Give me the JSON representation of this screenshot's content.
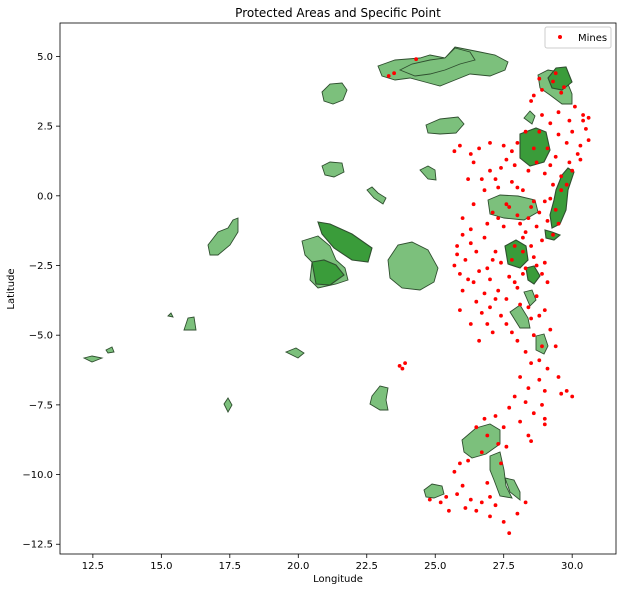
{
  "chart_data": {
    "type": "scatter",
    "title": "Protected Areas and Specific Point",
    "xlabel": "Longitude",
    "ylabel": "Latitude",
    "xlim": [
      11.3,
      31.6
    ],
    "ylim": [
      -12.85,
      6.2
    ],
    "xticks": [
      12.5,
      15.0,
      17.5,
      20.0,
      22.5,
      25.0,
      27.5,
      30.0
    ],
    "xtick_labels": [
      "12.5",
      "15.0",
      "17.5",
      "20.0",
      "22.5",
      "25.0",
      "27.5",
      "30.0"
    ],
    "yticks": [
      5.0,
      2.5,
      0.0,
      -2.5,
      -5.0,
      -7.5,
      -10.0,
      -12.5
    ],
    "ytick_labels": [
      "5.0",
      "2.5",
      "0.0",
      "−2.5",
      "−5.0",
      "−7.5",
      "−10.0",
      "−12.5"
    ],
    "grid": false,
    "legend_position": "top-right",
    "series": [
      {
        "name": "Mines",
        "color": "#ff0000",
        "marker": "point",
        "points": [
          [
            23.3,
            4.3
          ],
          [
            23.5,
            4.4
          ],
          [
            23.8,
            -6.2
          ],
          [
            23.9,
            -6.0
          ],
          [
            23.7,
            -6.1
          ],
          [
            24.3,
            4.9
          ],
          [
            26.3,
            1.5
          ],
          [
            26.4,
            1.2
          ],
          [
            27.0,
            1.9
          ],
          [
            27.5,
            1.8
          ],
          [
            27.8,
            1.6
          ],
          [
            27.4,
            1.0
          ],
          [
            27.0,
            0.9
          ],
          [
            26.2,
            0.6
          ],
          [
            26.8,
            0.2
          ],
          [
            27.3,
            0.3
          ],
          [
            27.8,
            0.5
          ],
          [
            27.1,
            -0.6
          ],
          [
            27.6,
            -0.3
          ],
          [
            28.0,
            -0.7
          ],
          [
            28.4,
            0.9
          ],
          [
            28.7,
            1.2
          ],
          [
            29.0,
            0.8
          ],
          [
            29.3,
            0.4
          ],
          [
            29.6,
            0.2
          ],
          [
            29.1,
            1.7
          ],
          [
            29.4,
            1.4
          ],
          [
            28.8,
            2.3
          ],
          [
            29.2,
            2.6
          ],
          [
            28.5,
            3.4
          ],
          [
            28.9,
            3.8
          ],
          [
            29.3,
            4.1
          ],
          [
            29.6,
            3.7
          ],
          [
            30.1,
            3.2
          ],
          [
            30.4,
            2.7
          ],
          [
            30.0,
            2.3
          ],
          [
            29.8,
            1.9
          ],
          [
            30.5,
            2.4
          ],
          [
            30.2,
            1.5
          ],
          [
            29.9,
            1.2
          ],
          [
            30.6,
            2.0
          ],
          [
            28.3,
            -1.3
          ],
          [
            28.7,
            -1.1
          ],
          [
            29.1,
            -0.9
          ],
          [
            28.5,
            -0.4
          ],
          [
            29.0,
            -0.2
          ],
          [
            28.9,
            -1.6
          ],
          [
            26.0,
            -0.8
          ],
          [
            26.3,
            -1.2
          ],
          [
            25.8,
            -1.8
          ],
          [
            26.1,
            -2.3
          ],
          [
            25.9,
            -2.8
          ],
          [
            26.4,
            -3.1
          ],
          [
            26.8,
            -1.5
          ],
          [
            27.2,
            -2.0
          ],
          [
            26.9,
            -2.6
          ],
          [
            27.4,
            -2.4
          ],
          [
            27.7,
            -2.9
          ],
          [
            27.3,
            -3.4
          ],
          [
            26.5,
            -3.8
          ],
          [
            26.7,
            -4.2
          ],
          [
            27.0,
            -4.0
          ],
          [
            27.6,
            -3.7
          ],
          [
            28.0,
            -3.3
          ],
          [
            28.3,
            -2.6
          ],
          [
            28.6,
            -2.2
          ],
          [
            28.9,
            -2.8
          ],
          [
            29.1,
            -3.1
          ],
          [
            28.7,
            -3.6
          ],
          [
            28.4,
            -4.0
          ],
          [
            28.8,
            -4.3
          ],
          [
            29.2,
            -4.8
          ],
          [
            28.6,
            -5.0
          ],
          [
            28.3,
            -5.6
          ],
          [
            28.8,
            -5.9
          ],
          [
            29.1,
            -6.2
          ],
          [
            29.5,
            -6.5
          ],
          [
            29.8,
            -7.0
          ],
          [
            30.0,
            -7.2
          ],
          [
            29.4,
            -5.4
          ],
          [
            27.6,
            -4.6
          ],
          [
            27.1,
            -4.9
          ],
          [
            26.6,
            -5.2
          ],
          [
            26.3,
            -4.6
          ],
          [
            25.9,
            -4.1
          ],
          [
            26.0,
            -3.4
          ],
          [
            25.7,
            -2.5
          ],
          [
            27.9,
            -1.8
          ],
          [
            28.2,
            -2.0
          ],
          [
            27.5,
            -1.1
          ],
          [
            28.1,
            -1.0
          ],
          [
            28.6,
            -0.2
          ],
          [
            29.2,
            -0.1
          ],
          [
            29.4,
            -0.5
          ],
          [
            29.6,
            0.7
          ],
          [
            27.9,
            -7.2
          ],
          [
            28.3,
            -7.4
          ],
          [
            28.6,
            -7.8
          ],
          [
            28.9,
            -7.5
          ],
          [
            29.0,
            -8.0
          ],
          [
            28.1,
            -8.1
          ],
          [
            27.7,
            -7.6
          ],
          [
            27.5,
            -8.3
          ],
          [
            27.2,
            -7.9
          ],
          [
            26.8,
            -8.0
          ],
          [
            26.5,
            -8.3
          ],
          [
            26.9,
            -8.6
          ],
          [
            27.3,
            -8.9
          ],
          [
            27.6,
            -9.0
          ],
          [
            26.7,
            -9.2
          ],
          [
            26.2,
            -9.5
          ],
          [
            25.9,
            -9.6
          ],
          [
            25.7,
            -9.9
          ],
          [
            26.0,
            -10.4
          ],
          [
            25.4,
            -10.8
          ],
          [
            25.8,
            -10.7
          ],
          [
            26.3,
            -10.9
          ],
          [
            26.7,
            -11.0
          ],
          [
            27.0,
            -10.8
          ],
          [
            26.5,
            -11.3
          ],
          [
            27.2,
            -11.1
          ],
          [
            27.0,
            -11.5
          ],
          [
            27.5,
            -11.7
          ],
          [
            27.7,
            -12.1
          ],
          [
            28.0,
            -11.4
          ],
          [
            28.3,
            -11.0
          ],
          [
            25.2,
            -11.0
          ],
          [
            25.5,
            -11.3
          ],
          [
            24.8,
            -10.9
          ],
          [
            26.1,
            -11.2
          ],
          [
            26.9,
            -10.3
          ],
          [
            27.4,
            -9.6
          ],
          [
            28.4,
            -8.6
          ],
          [
            29.0,
            -8.2
          ],
          [
            28.5,
            -8.8
          ],
          [
            29.6,
            -7.1
          ],
          [
            28.5,
            -6.0
          ],
          [
            28.1,
            -6.5
          ],
          [
            28.4,
            -6.9
          ],
          [
            28.8,
            -6.6
          ],
          [
            29.0,
            -7.0
          ],
          [
            28.0,
            -5.2
          ],
          [
            27.8,
            -4.9
          ],
          [
            25.8,
            -2.1
          ],
          [
            26.0,
            -1.4
          ],
          [
            26.5,
            -2.0
          ],
          [
            26.6,
            -2.7
          ],
          [
            26.2,
            -3.0
          ],
          [
            27.0,
            -3.0
          ],
          [
            27.2,
            -3.7
          ],
          [
            27.9,
            -3.1
          ],
          [
            28.1,
            -3.9
          ],
          [
            28.5,
            -4.4
          ],
          [
            29.0,
            -4.1
          ],
          [
            28.9,
            -5.4
          ],
          [
            28.2,
            -1.5
          ],
          [
            28.8,
            -0.6
          ],
          [
            29.3,
            -1.4
          ],
          [
            29.5,
            -1.0
          ],
          [
            28.4,
            -0.8
          ],
          [
            27.7,
            -0.4
          ],
          [
            29.8,
            0.4
          ],
          [
            30.0,
            0.9
          ],
          [
            30.3,
            1.8
          ],
          [
            30.6,
            2.8
          ],
          [
            30.4,
            2.9
          ],
          [
            29.9,
            2.7
          ],
          [
            29.7,
            3.9
          ],
          [
            29.4,
            4.4
          ],
          [
            28.8,
            4.2
          ],
          [
            28.6,
            3.6
          ],
          [
            28.9,
            2.9
          ],
          [
            29.5,
            3.0
          ],
          [
            28.3,
            2.3
          ],
          [
            28.0,
            1.9
          ],
          [
            26.6,
            1.7
          ],
          [
            25.9,
            1.8
          ],
          [
            25.7,
            1.6
          ],
          [
            27.6,
            1.3
          ],
          [
            27.9,
            1.1
          ],
          [
            28.2,
            0.2
          ],
          [
            26.4,
            -0.3
          ],
          [
            26.9,
            -1.0
          ],
          [
            27.3,
            -0.8
          ],
          [
            28.5,
            -1.8
          ],
          [
            29.0,
            -2.4
          ],
          [
            28.7,
            -2.5
          ],
          [
            28.2,
            -2.8
          ],
          [
            27.8,
            -2.3
          ],
          [
            27.1,
            -2.3
          ],
          [
            26.3,
            -1.7
          ],
          [
            26.8,
            -3.5
          ],
          [
            27.4,
            -4.3
          ],
          [
            26.9,
            -4.6
          ],
          [
            29.5,
            2.2
          ],
          [
            30.3,
            1.3
          ],
          [
            29.2,
            1.1
          ],
          [
            28.6,
            1.7
          ],
          [
            27.2,
            0.6
          ],
          [
            26.7,
            0.6
          ],
          [
            28.0,
            0.3
          ]
        ]
      }
    ],
    "protected_area_colors": {
      "light_fill": "#7cc07c",
      "dark_fill": "#3a9c3a",
      "edge": "#2f4f2f"
    }
  }
}
